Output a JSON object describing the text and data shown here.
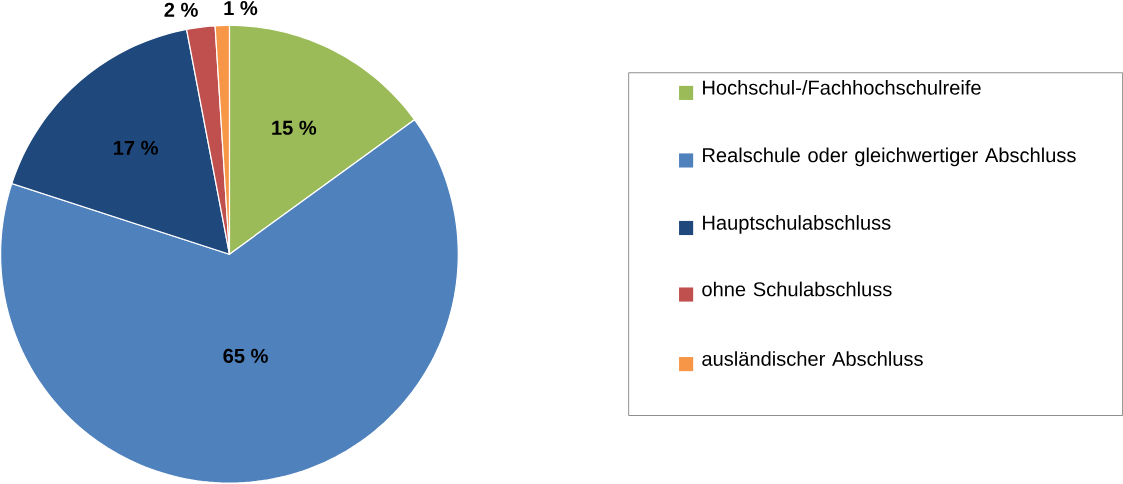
{
  "chart_data": {
    "type": "pie",
    "categories": [
      "Hochschul-/Fachhochschulreife",
      "Realschule oder gleichwertiger Abschluss",
      "Hauptschulabschluss",
      "ohne Schulabschluss",
      "ausländischer Abschluss"
    ],
    "values": [
      15,
      65,
      17,
      2,
      1
    ],
    "colors": [
      "#9bbb59",
      "#4f81bd",
      "#1f497d",
      "#c0504d",
      "#f79646"
    ],
    "value_labels": [
      "15 %",
      "65 %",
      "17 %",
      "2 %",
      "1 %"
    ],
    "legend": "right"
  }
}
